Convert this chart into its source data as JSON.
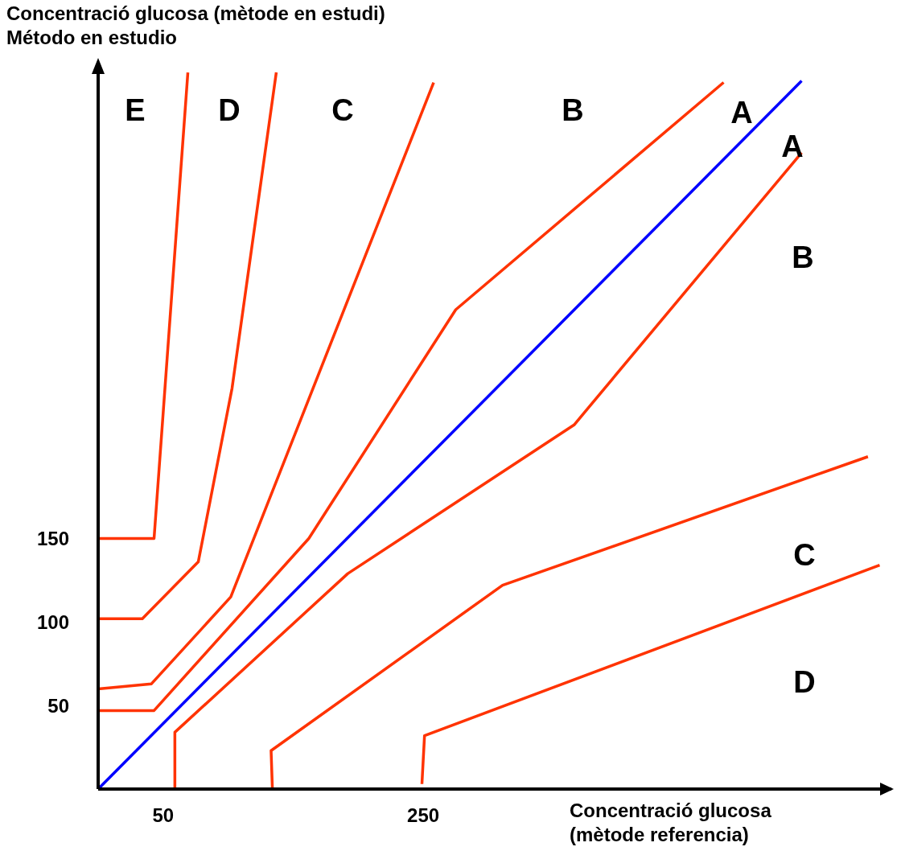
{
  "chart_data": {
    "type": "line",
    "ylabel": "Concentració glucosa (mètode en estudi)\nMétodo en estudio",
    "xlabel": "Concentració glucosa\n(mètode referencia)",
    "xlim": [
      0,
      610
    ],
    "ylim": [
      0,
      430
    ],
    "xticks": [
      50,
      250
    ],
    "yticks": [
      50,
      100,
      150
    ],
    "grid": false,
    "marker": "none",
    "line_style": "solid",
    "series": [
      {
        "color": "#ff3300",
        "x": [
          0,
          43,
          69
        ],
        "values": [
          150,
          150,
          429
        ]
      },
      {
        "color": "#ff3300",
        "x": [
          0,
          34,
          77,
          103,
          137
        ],
        "values": [
          102,
          102,
          136,
          240,
          429
        ]
      },
      {
        "color": "#ff3300",
        "x": [
          0,
          41,
          102,
          258
        ],
        "values": [
          60,
          63,
          115,
          423
        ]
      },
      {
        "color": "#ff3300",
        "x": [
          0,
          43,
          162,
          275,
          481
        ],
        "values": [
          47,
          47,
          150,
          287,
          423
        ]
      },
      {
        "color": "#0000ff",
        "x": [
          0,
          541
        ],
        "values": [
          0,
          424
        ]
      },
      {
        "color": "#ff3300",
        "x": [
          59,
          59,
          192,
          366,
          541
        ],
        "values": [
          0,
          34,
          129,
          218,
          381
        ]
      },
      {
        "color": "#ff3300",
        "x": [
          134,
          133,
          311,
          592
        ],
        "values": [
          0,
          23,
          122,
          199
        ]
      },
      {
        "color": "#ff3300",
        "x": [
          249,
          251,
          601
        ],
        "values": [
          3,
          32,
          134
        ]
      }
    ],
    "annotations": [
      "E",
      "D",
      "C",
      "B",
      "A",
      "A",
      "B",
      "C",
      "D"
    ]
  }
}
